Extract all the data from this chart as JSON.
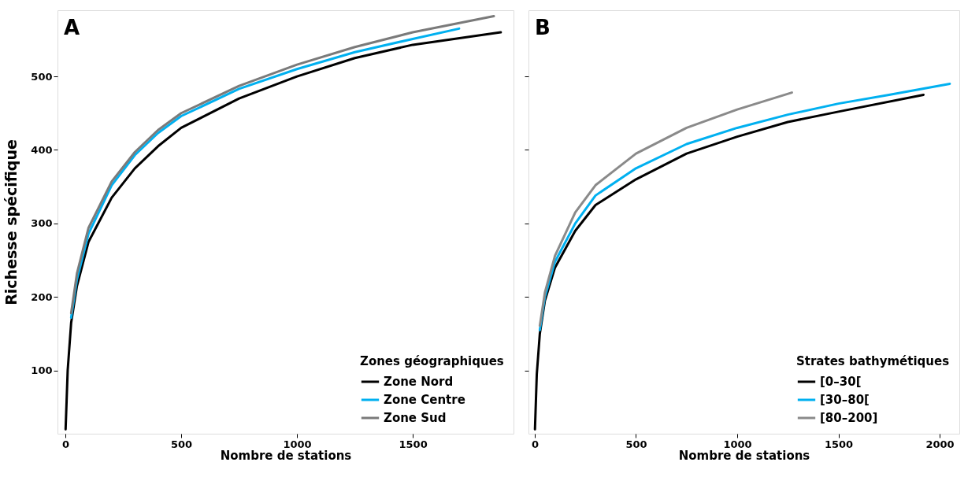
{
  "chart_data": [
    {
      "type": "line",
      "ylabel": "Richesse spécifique",
      "xlabel": "Nombre de stations",
      "annotations": [
        "A"
      ],
      "legend_title": "Zones géographiques",
      "legend": "bottom right",
      "grid": false,
      "line_style": "solid",
      "marker": "none",
      "xlim": [
        -34,
        1935
      ],
      "xticks": [
        0,
        500,
        1000,
        1500
      ],
      "ylim": [
        14,
        590
      ],
      "yticks": [
        100,
        200,
        300,
        400,
        500
      ],
      "series": [
        {
          "name": "Zone Nord",
          "color": "#000000",
          "x": [
            1,
            10,
            25,
            50,
            100,
            200,
            300,
            400,
            500,
            750,
            1000,
            1250,
            1500,
            1880
          ],
          "values": [
            20,
            100,
            165,
            215,
            275,
            335,
            375,
            405,
            430,
            470,
            500,
            525,
            543,
            560
          ]
        },
        {
          "name": "Zone Centre",
          "color": "#00b0f0",
          "x": [
            25,
            50,
            100,
            200,
            300,
            400,
            500,
            750,
            1000,
            1250,
            1500,
            1700
          ],
          "values": [
            172,
            224,
            286,
            352,
            393,
            423,
            446,
            483,
            510,
            533,
            551,
            565
          ]
        },
        {
          "name": "Zone Sud",
          "color": "#7a7a7a",
          "x": [
            25,
            50,
            100,
            200,
            300,
            400,
            500,
            750,
            1000,
            1250,
            1500,
            1850
          ],
          "values": [
            178,
            232,
            294,
            357,
            397,
            427,
            450,
            487,
            516,
            540,
            560,
            582
          ]
        }
      ]
    },
    {
      "type": "line",
      "xlabel": "Nombre de stations",
      "annotations": [
        "B"
      ],
      "legend_title": "Strates bathymétiques",
      "legend": "bottom right",
      "grid": false,
      "line_style": "solid",
      "marker": "none",
      "tick_labels": "x",
      "xlim": [
        -31,
        2097
      ],
      "xticks": [
        0,
        500,
        1000,
        1500,
        2000
      ],
      "ylim": [
        14,
        590
      ],
      "yticks": [
        100,
        200,
        300,
        400,
        500
      ],
      "series": [
        {
          "name": "[0–30[",
          "color": "#000000",
          "x": [
            1,
            10,
            25,
            50,
            100,
            200,
            300,
            500,
            750,
            1000,
            1250,
            1500,
            1920
          ],
          "values": [
            20,
            95,
            150,
            195,
            240,
            290,
            325,
            360,
            395,
            418,
            438,
            452,
            475
          ]
        },
        {
          "name": "[30–80[",
          "color": "#00b0f0",
          "x": [
            25,
            50,
            100,
            200,
            300,
            500,
            750,
            1000,
            1250,
            1500,
            1750,
            2050
          ],
          "values": [
            155,
            200,
            248,
            300,
            338,
            375,
            408,
            430,
            448,
            463,
            475,
            490
          ]
        },
        {
          "name": "[80–200]",
          "color": "#8a8a8a",
          "x": [
            25,
            50,
            100,
            200,
            300,
            500,
            750,
            1000,
            1270
          ],
          "values": [
            161,
            206,
            256,
            315,
            352,
            395,
            430,
            455,
            478
          ]
        }
      ]
    }
  ]
}
